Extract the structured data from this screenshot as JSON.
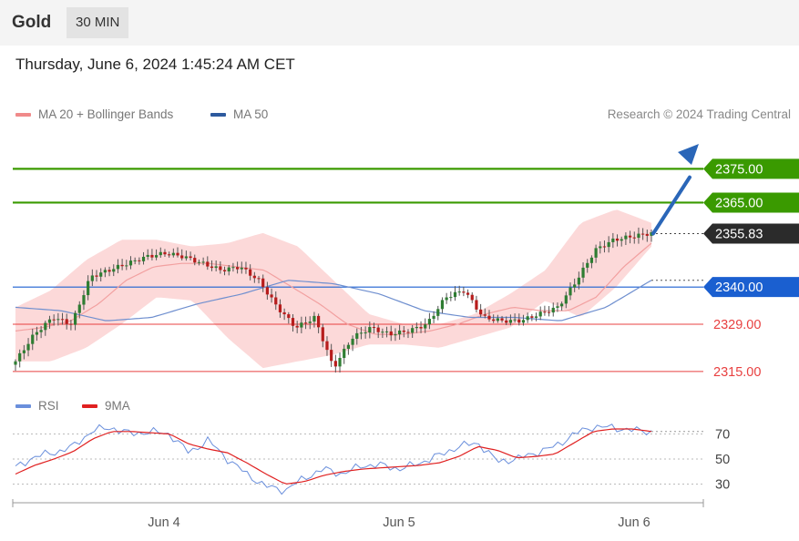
{
  "header": {
    "asset": "Gold",
    "timeframe": "30 MIN"
  },
  "datetime": "Thursday, June 6, 2024 1:45:24 AM CET",
  "legend": {
    "bollinger": {
      "label": "MA 20 + Bollinger Bands",
      "color": "#f08a8a"
    },
    "ma50": {
      "label": "MA 50",
      "color": "#2d5a9e"
    }
  },
  "credit": "Research © 2024 Trading Central",
  "rsi_legend": {
    "rsi": {
      "label": "RSI",
      "color": "#6a8fdc"
    },
    "ma9": {
      "label": "9MA",
      "color": "#e02020"
    }
  },
  "colors": {
    "target": "#3a9a00",
    "pivot": "#1a5fd0",
    "support": "#e84040",
    "last": "#2b2b2b",
    "up": "#2e7d32",
    "down": "#b71c1c",
    "band": "#fbd0d0",
    "arrow": "#2a66b8"
  },
  "chart_data": [
    {
      "type": "candlestick",
      "title": "Gold 30 MIN",
      "x_labels": [
        "Jun 4",
        "Jun 5",
        "Jun 6"
      ],
      "ylim": [
        2312,
        2384
      ],
      "levels": [
        {
          "label": "2375.00",
          "value": 2375.0,
          "kind": "target"
        },
        {
          "label": "2365.00",
          "value": 2365.0,
          "kind": "target"
        },
        {
          "label": "2355.83",
          "value": 2355.83,
          "kind": "last"
        },
        {
          "label": "2340.00",
          "value": 2340.0,
          "kind": "pivot"
        },
        {
          "label": "2329.00",
          "value": 2329.0,
          "kind": "support"
        },
        {
          "label": "2315.00",
          "value": 2315.0,
          "kind": "support"
        }
      ],
      "close_anchors": [
        2318,
        2326,
        2331,
        2329,
        2343,
        2345,
        2347,
        2349,
        2350,
        2349,
        2347,
        2345,
        2346,
        2342,
        2334,
        2328,
        2331,
        2316,
        2325,
        2328,
        2326,
        2327,
        2329,
        2337,
        2339,
        2331,
        2330,
        2330,
        2332,
        2334,
        2342,
        2351,
        2354,
        2355,
        2356
      ],
      "ma20_anchors": [
        2327,
        2328,
        2330,
        2335,
        2342,
        2346,
        2347,
        2347,
        2346,
        2345,
        2340,
        2335,
        2329,
        2326,
        2326,
        2327,
        2329,
        2332,
        2334,
        2333,
        2333,
        2337,
        2346,
        2353
      ],
      "ma50_anchors": [
        2334,
        2333,
        2330,
        2331,
        2335,
        2338,
        2342,
        2341,
        2338,
        2333,
        2331,
        2331,
        2330,
        2334,
        2342
      ],
      "band_upper_anchors": [
        2334,
        2339,
        2348,
        2354,
        2354,
        2352,
        2353,
        2356,
        2352,
        2342,
        2332,
        2329,
        2329,
        2332,
        2338,
        2345,
        2359,
        2363,
        2359
      ],
      "band_lower_anchors": [
        2318,
        2318,
        2322,
        2329,
        2337,
        2336,
        2325,
        2316,
        2318,
        2320,
        2323,
        2323,
        2322,
        2325,
        2328,
        2336,
        2331,
        2340,
        2352
      ]
    },
    {
      "type": "line",
      "title": "RSI",
      "series": [
        {
          "name": "RSI",
          "values": [
            43,
            52,
            55,
            60,
            73,
            75,
            70,
            72,
            70,
            55,
            65,
            50,
            38,
            28,
            25,
            35,
            42,
            38,
            45,
            45,
            42,
            47,
            53,
            60,
            63,
            48,
            50,
            55,
            60,
            70,
            76,
            75,
            73,
            72
          ]
        },
        {
          "name": "9MA",
          "values": [
            38,
            45,
            50,
            56,
            66,
            72,
            72,
            71,
            70,
            62,
            58,
            55,
            47,
            38,
            30,
            32,
            37,
            40,
            42,
            43,
            44,
            45,
            47,
            52,
            60,
            57,
            51,
            52,
            54,
            63,
            72,
            74,
            74,
            72
          ]
        }
      ],
      "yticks": [
        30,
        50,
        70
      ],
      "ylim": [
        18,
        82
      ]
    }
  ]
}
